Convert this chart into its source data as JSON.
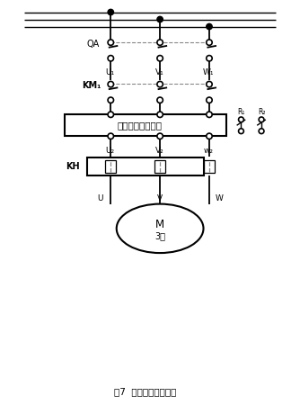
{
  "title": "图7  不带旁路的一次图",
  "bg_color": "#ffffff",
  "line_color": "#000000",
  "dashed_color": "#888888",
  "text_color": "#000000",
  "fig_width": 3.24,
  "fig_height": 4.5,
  "dpi": 100,
  "phase_labels": [
    "U₁",
    "V₁",
    "W₁"
  ],
  "phase2_labels": [
    "U₂",
    "V₂",
    "w₂"
  ],
  "QA_label": "QA",
  "KM1_label": "KM₁",
  "KH_label": "KH",
  "soft_starter_label": "电动机软启动装置",
  "R1_label": "R₁",
  "R2_label": "R₂",
  "motor_label": "M\n3～",
  "U_label": "U",
  "V_label": "V",
  "W_label": "W"
}
